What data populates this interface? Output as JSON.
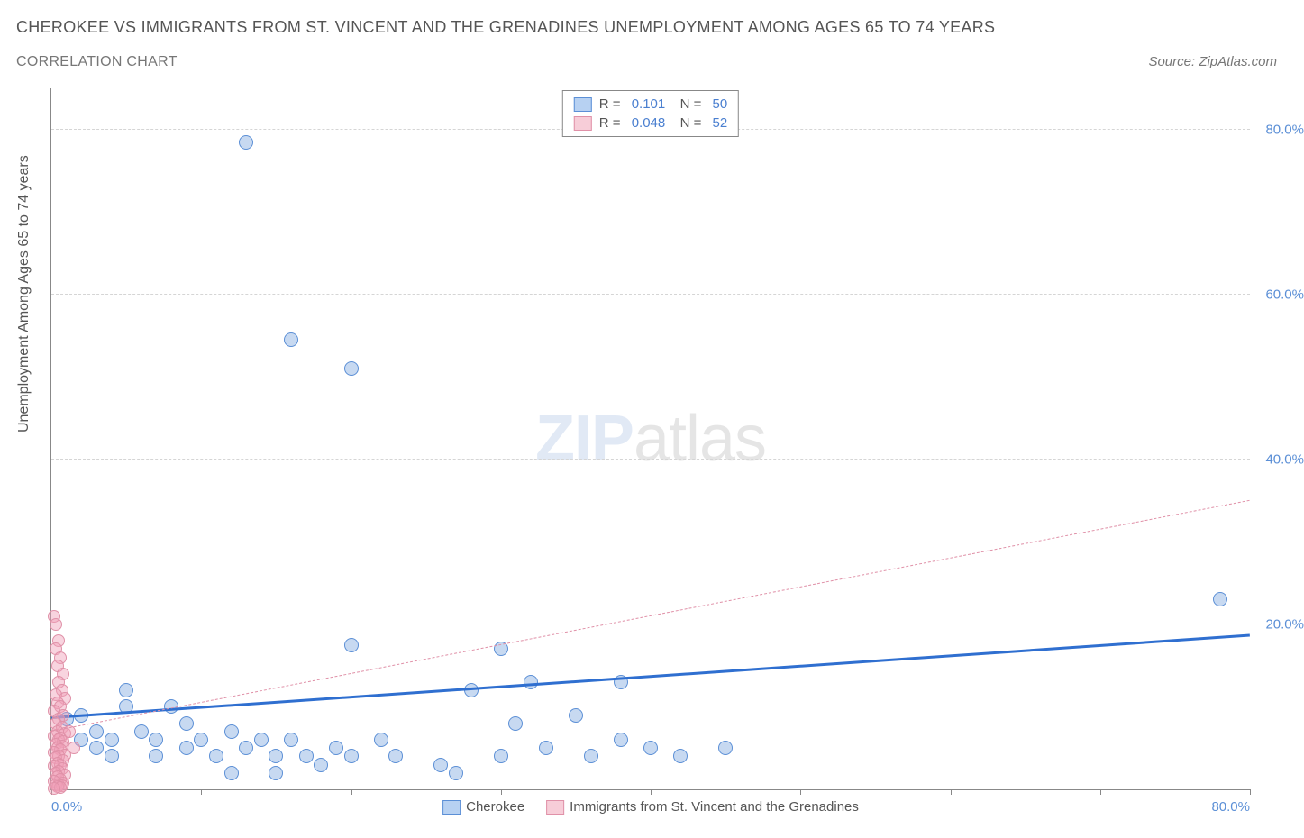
{
  "title": "CHEROKEE VS IMMIGRANTS FROM ST. VINCENT AND THE GRENADINES UNEMPLOYMENT AMONG AGES 65 TO 74 YEARS",
  "subtitle": "CORRELATION CHART",
  "source": "Source: ZipAtlas.com",
  "y_axis_label": "Unemployment Among Ages 65 to 74 years",
  "watermark_zip": "ZIP",
  "watermark_atlas": "atlas",
  "chart": {
    "type": "scatter",
    "xlim": [
      0,
      80
    ],
    "ylim": [
      0,
      85
    ],
    "grid_color": "#d5d5d5",
    "background_color": "#ffffff",
    "y_ticks": [
      {
        "v": 20,
        "label": "20.0%"
      },
      {
        "v": 40,
        "label": "40.0%"
      },
      {
        "v": 60,
        "label": "60.0%"
      },
      {
        "v": 80,
        "label": "80.0%"
      }
    ],
    "x_ticks": [
      0,
      10,
      20,
      30,
      40,
      50,
      60,
      70,
      80
    ],
    "x_start_label": "0.0%",
    "x_end_label": "80.0%",
    "legend_top": [
      {
        "swatch_fill": "#b7d1f2",
        "swatch_border": "#5b8fd6",
        "r_label": "R =",
        "r_value": "0.101",
        "n_label": "N =",
        "n_value": "50"
      },
      {
        "swatch_fill": "#f7cdd8",
        "swatch_border": "#e091a8",
        "r_label": "R =",
        "r_value": "0.048",
        "n_label": "N =",
        "n_value": "52"
      }
    ],
    "legend_bottom": [
      {
        "swatch_fill": "#b7d1f2",
        "swatch_border": "#5b8fd6",
        "label": "Cherokee"
      },
      {
        "swatch_fill": "#f7cdd8",
        "swatch_border": "#e091a8",
        "label": "Immigrants from St. Vincent and the Grenadines"
      }
    ],
    "series": [
      {
        "name": "cherokee",
        "color_fill": "rgba(130,170,225,0.45)",
        "color_border": "#5b8fd6",
        "marker_size": 14,
        "trend": {
          "x1": 0,
          "y1": 8.5,
          "x2": 80,
          "y2": 18.5,
          "color": "#2f6fd0",
          "width": 3,
          "dash": "solid"
        },
        "points": [
          [
            13,
            78.5
          ],
          [
            16,
            54.5
          ],
          [
            20,
            51
          ],
          [
            78,
            23
          ],
          [
            20,
            17.5
          ],
          [
            30,
            17
          ],
          [
            32,
            13
          ],
          [
            1,
            8.5
          ],
          [
            2,
            9
          ],
          [
            2,
            6
          ],
          [
            3,
            7
          ],
          [
            3,
            5
          ],
          [
            4,
            4
          ],
          [
            4,
            6
          ],
          [
            5,
            12
          ],
          [
            5,
            10
          ],
          [
            6,
            7
          ],
          [
            7,
            4
          ],
          [
            7,
            6
          ],
          [
            8,
            10
          ],
          [
            9,
            5
          ],
          [
            9,
            8
          ],
          [
            10,
            6
          ],
          [
            11,
            4
          ],
          [
            12,
            2
          ],
          [
            12,
            7
          ],
          [
            13,
            5
          ],
          [
            14,
            6
          ],
          [
            15,
            4
          ],
          [
            15,
            2
          ],
          [
            16,
            6
          ],
          [
            17,
            4
          ],
          [
            18,
            3
          ],
          [
            19,
            5
          ],
          [
            20,
            4
          ],
          [
            22,
            6
          ],
          [
            23,
            4
          ],
          [
            26,
            3
          ],
          [
            27,
            2
          ],
          [
            28,
            12
          ],
          [
            30,
            4
          ],
          [
            31,
            8
          ],
          [
            33,
            5
          ],
          [
            35,
            9
          ],
          [
            36,
            4
          ],
          [
            38,
            6
          ],
          [
            40,
            5
          ],
          [
            42,
            4
          ],
          [
            45,
            5
          ],
          [
            38,
            13
          ]
        ]
      },
      {
        "name": "immigrants",
        "color_fill": "rgba(240,160,185,0.45)",
        "color_border": "#e091a8",
        "marker_size": 12,
        "trend": {
          "x1": 0,
          "y1": 7,
          "x2": 80,
          "y2": 35,
          "color": "#e091a8",
          "width": 1.5,
          "dash": "dashed"
        },
        "points": [
          [
            0.2,
            21
          ],
          [
            0.3,
            20
          ],
          [
            0.5,
            18
          ],
          [
            0.3,
            17
          ],
          [
            0.6,
            16
          ],
          [
            0.4,
            15
          ],
          [
            0.8,
            14
          ],
          [
            0.5,
            13
          ],
          [
            0.7,
            12
          ],
          [
            0.3,
            11.5
          ],
          [
            0.9,
            11
          ],
          [
            0.4,
            10.5
          ],
          [
            0.6,
            10
          ],
          [
            0.2,
            9.5
          ],
          [
            0.8,
            9
          ],
          [
            0.5,
            8.5
          ],
          [
            0.3,
            8
          ],
          [
            0.7,
            7.5
          ],
          [
            0.4,
            7
          ],
          [
            0.9,
            6.8
          ],
          [
            0.2,
            6.5
          ],
          [
            0.6,
            6.2
          ],
          [
            0.5,
            6
          ],
          [
            0.8,
            5.8
          ],
          [
            0.3,
            5.5
          ],
          [
            0.7,
            5.2
          ],
          [
            0.4,
            5
          ],
          [
            0.6,
            4.8
          ],
          [
            0.2,
            4.5
          ],
          [
            0.9,
            4.2
          ],
          [
            0.5,
            4
          ],
          [
            0.3,
            3.8
          ],
          [
            0.8,
            3.5
          ],
          [
            0.4,
            3.2
          ],
          [
            0.6,
            3
          ],
          [
            0.2,
            2.8
          ],
          [
            0.7,
            2.5
          ],
          [
            0.5,
            2.2
          ],
          [
            0.3,
            2
          ],
          [
            0.9,
            1.8
          ],
          [
            0.4,
            1.5
          ],
          [
            0.6,
            1.2
          ],
          [
            0.2,
            1
          ],
          [
            0.8,
            0.8
          ],
          [
            0.5,
            0.6
          ],
          [
            0.3,
            0.5
          ],
          [
            0.7,
            0.4
          ],
          [
            0.4,
            0.3
          ],
          [
            0.6,
            0.2
          ],
          [
            0.2,
            0.1
          ],
          [
            1.2,
            7
          ],
          [
            1.5,
            5
          ]
        ]
      }
    ]
  }
}
